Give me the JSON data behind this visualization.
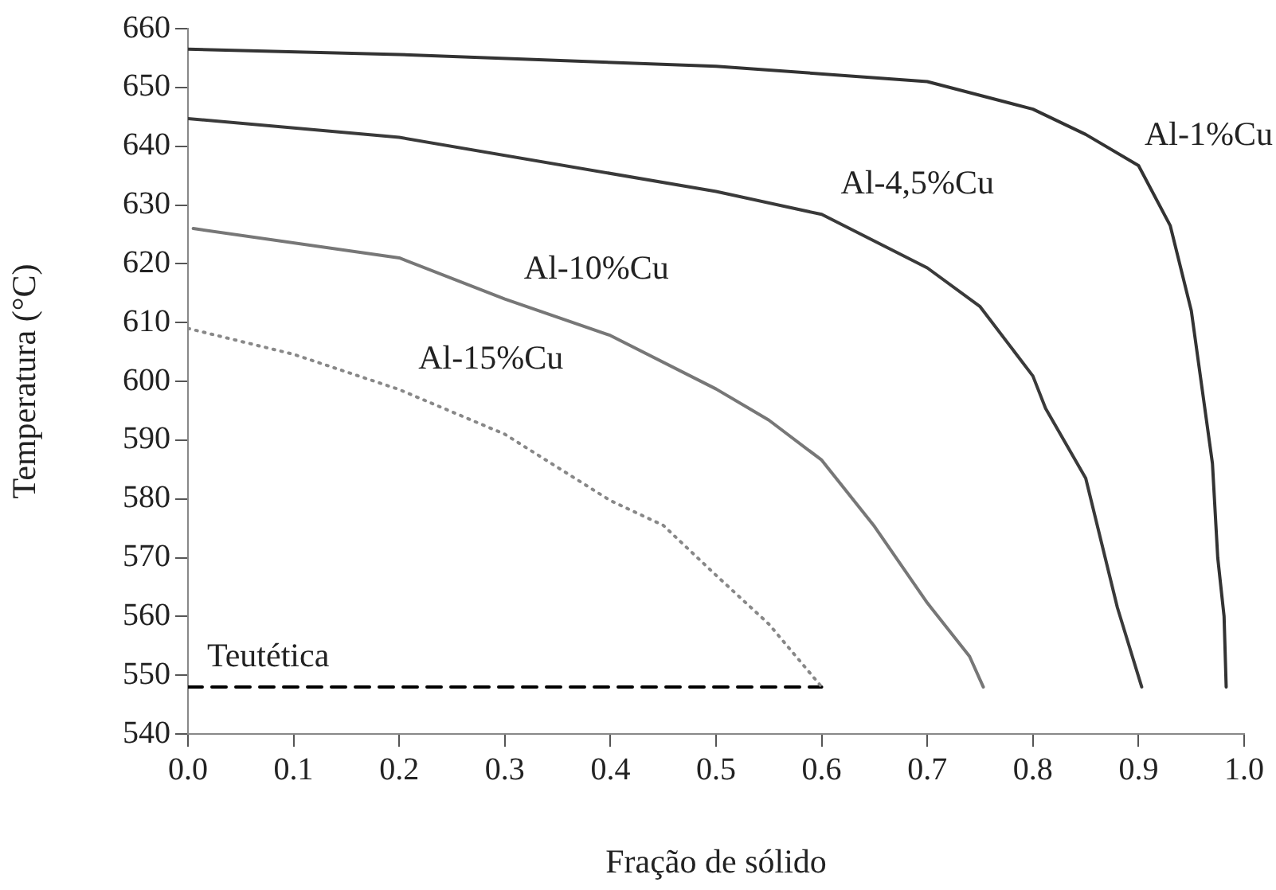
{
  "chart_data": {
    "type": "line",
    "xlabel": "Fração de sólido",
    "ylabel": "Temperatura (°C)",
    "xlim": [
      0,
      1
    ],
    "xticks": [
      {
        "value": 0,
        "label": "0.0"
      },
      0.1,
      0.2,
      0.3,
      0.4,
      0.5,
      0.6,
      0.7,
      0.8,
      0.9,
      {
        "value": 1,
        "label": "1.0"
      }
    ],
    "ylim": [
      540,
      660
    ],
    "yticks": [
      540,
      550,
      560,
      570,
      580,
      590,
      600,
      610,
      620,
      630,
      640,
      650,
      660
    ],
    "grid": false,
    "legend": false,
    "marker": "none",
    "series": [
      {
        "name": "Al-1%Cu",
        "color": "#333333",
        "x": [
          0,
          0.2,
          0.5,
          0.7,
          0.8,
          0.85,
          0.9,
          0.93,
          0.95,
          0.97,
          0.975,
          0.981,
          0.983
        ],
        "values": [
          656.5,
          655.6,
          653.6,
          651,
          646.3,
          642,
          636.7,
          626.5,
          612,
          586,
          570,
          560,
          548
        ]
      },
      {
        "name": "Al-4,5%Cu",
        "color": "#3a3a3a",
        "x": [
          0,
          0.2,
          0.5,
          0.6,
          0.7,
          0.75,
          0.8,
          0.812,
          0.85,
          0.88,
          0.903
        ],
        "values": [
          644.7,
          641.5,
          632.3,
          628.4,
          619.3,
          612.7,
          600.9,
          595.4,
          583.5,
          561.5,
          548
        ]
      },
      {
        "name": "Al-10%Cu",
        "color": "#777777",
        "x": [
          0.005,
          0.2,
          0.3,
          0.4,
          0.5,
          0.55,
          0.6,
          0.65,
          0.7,
          0.74,
          0.753
        ],
        "values": [
          626,
          621,
          614,
          607.8,
          598.7,
          593.4,
          586.6,
          575.3,
          562.3,
          553.2,
          548
        ]
      },
      {
        "name": "Al-15%Cu",
        "color": "#888888",
        "line_style": "dotted",
        "x": [
          0,
          0.1,
          0.2,
          0.3,
          0.4,
          0.45,
          0.5,
          0.55,
          0.6
        ],
        "values": [
          609,
          604.6,
          598.6,
          591,
          579.7,
          575.5,
          567,
          558.7,
          548
        ]
      },
      {
        "name": "Teutética",
        "color": "#000000",
        "line_style": "dashed",
        "x": [
          0,
          0.6
        ],
        "values": [
          548,
          548
        ]
      }
    ]
  }
}
